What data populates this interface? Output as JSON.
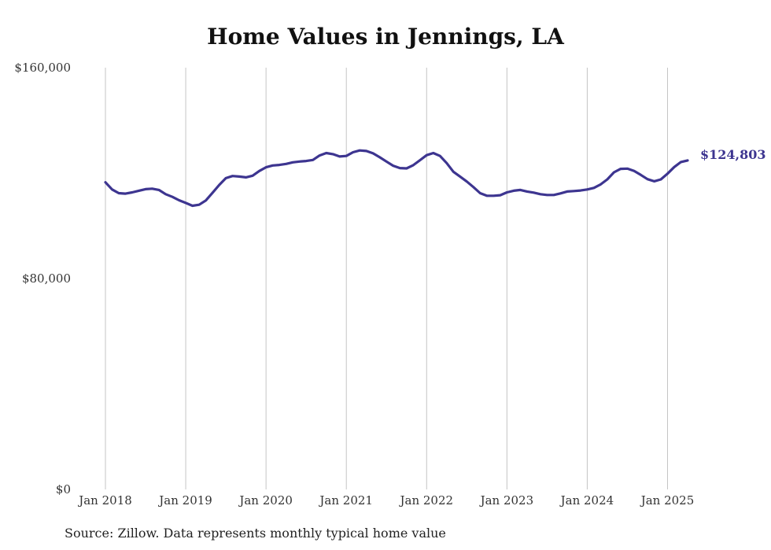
{
  "title": "Home Values in Jennings, LA",
  "source": "Source: Zillow. Data represents monthly typical home value",
  "chart_data": {
    "type": "line",
    "title": "Home Values in Jennings, LA",
    "xlabel": "",
    "ylabel": "",
    "x_ticks": [
      "Jan 2018",
      "Jan 2019",
      "Jan 2020",
      "Jan 2021",
      "Jan 2022",
      "Jan 2023",
      "Jan 2024",
      "Jan 2025"
    ],
    "y_ticks": [
      "$0",
      "$80,000",
      "$160,000"
    ],
    "ylim": [
      0,
      160000
    ],
    "xlim": [
      "2018-01",
      "2025-03"
    ],
    "grid": "vertical",
    "line_color": "#3d3590",
    "end_label": "$124,803",
    "series": [
      {
        "values": [
          [
            "2018-01",
            116500
          ],
          [
            "2018-02",
            113800
          ],
          [
            "2018-03",
            112400
          ],
          [
            "2018-04",
            112200
          ],
          [
            "2018-05",
            112700
          ],
          [
            "2018-06",
            113300
          ],
          [
            "2018-07",
            113900
          ],
          [
            "2018-08",
            114100
          ],
          [
            "2018-09",
            113600
          ],
          [
            "2018-10",
            112000
          ],
          [
            "2018-11",
            111000
          ],
          [
            "2018-12",
            109700
          ],
          [
            "2019-01",
            108700
          ],
          [
            "2019-02",
            107600
          ],
          [
            "2019-03",
            108000
          ],
          [
            "2019-04",
            109600
          ],
          [
            "2019-05",
            112500
          ],
          [
            "2019-06",
            115500
          ],
          [
            "2019-07",
            118100
          ],
          [
            "2019-08",
            118900
          ],
          [
            "2019-09",
            118700
          ],
          [
            "2019-10",
            118400
          ],
          [
            "2019-11",
            119000
          ],
          [
            "2019-12",
            120800
          ],
          [
            "2020-01",
            122200
          ],
          [
            "2020-02",
            122900
          ],
          [
            "2020-03",
            123100
          ],
          [
            "2020-04",
            123500
          ],
          [
            "2020-05",
            124100
          ],
          [
            "2020-06",
            124400
          ],
          [
            "2020-07",
            124600
          ],
          [
            "2020-08",
            125000
          ],
          [
            "2020-09",
            126700
          ],
          [
            "2020-10",
            127600
          ],
          [
            "2020-11",
            127200
          ],
          [
            "2020-12",
            126300
          ],
          [
            "2021-01",
            126500
          ],
          [
            "2021-02",
            127900
          ],
          [
            "2021-03",
            128600
          ],
          [
            "2021-04",
            128400
          ],
          [
            "2021-05",
            127500
          ],
          [
            "2021-06",
            126000
          ],
          [
            "2021-07",
            124400
          ],
          [
            "2021-08",
            122800
          ],
          [
            "2021-09",
            121900
          ],
          [
            "2021-10",
            121800
          ],
          [
            "2021-11",
            123000
          ],
          [
            "2021-12",
            124900
          ],
          [
            "2022-01",
            126800
          ],
          [
            "2022-02",
            127600
          ],
          [
            "2022-03",
            126500
          ],
          [
            "2022-04",
            123800
          ],
          [
            "2022-05",
            120500
          ],
          [
            "2022-06",
            118700
          ],
          [
            "2022-07",
            116800
          ],
          [
            "2022-08",
            114700
          ],
          [
            "2022-09",
            112400
          ],
          [
            "2022-10",
            111400
          ],
          [
            "2022-11",
            111400
          ],
          [
            "2022-12",
            111600
          ],
          [
            "2023-01",
            112700
          ],
          [
            "2023-02",
            113300
          ],
          [
            "2023-03",
            113600
          ],
          [
            "2023-04",
            113000
          ],
          [
            "2023-05",
            112600
          ],
          [
            "2023-06",
            112000
          ],
          [
            "2023-07",
            111700
          ],
          [
            "2023-08",
            111700
          ],
          [
            "2023-09",
            112300
          ],
          [
            "2023-10",
            113000
          ],
          [
            "2023-11",
            113200
          ],
          [
            "2023-12",
            113400
          ],
          [
            "2024-01",
            113800
          ],
          [
            "2024-02",
            114400
          ],
          [
            "2024-03",
            115700
          ],
          [
            "2024-04",
            117600
          ],
          [
            "2024-05",
            120300
          ],
          [
            "2024-06",
            121600
          ],
          [
            "2024-07",
            121700
          ],
          [
            "2024-08",
            120800
          ],
          [
            "2024-09",
            119300
          ],
          [
            "2024-10",
            117700
          ],
          [
            "2024-11",
            116900
          ],
          [
            "2024-12",
            117600
          ],
          [
            "2025-01",
            119800
          ],
          [
            "2025-02",
            122300
          ],
          [
            "2025-03",
            124200
          ],
          [
            "2025-04",
            124803
          ]
        ]
      }
    ]
  }
}
